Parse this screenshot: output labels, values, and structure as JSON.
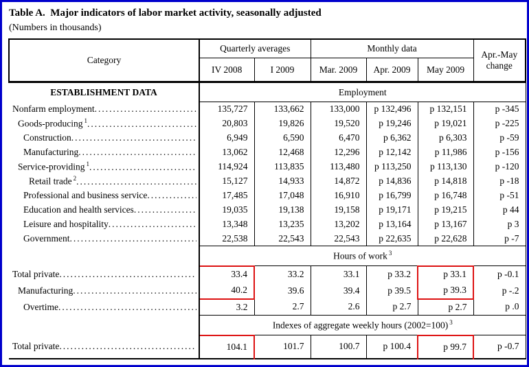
{
  "title": "Table A.  Major indicators of labor market activity, seasonally adjusted",
  "subtitle": "(Numbers in thousands)",
  "colors": {
    "frame_blue": "#0000cc",
    "highlight_red": "#dd1111",
    "line_black": "#000000"
  },
  "header": {
    "category": "Category",
    "quarterly_group": "Quarterly averages",
    "monthly_group": "Monthly data",
    "change": "Apr.-May change",
    "columns": [
      "IV 2008",
      "I 2009",
      "Mar. 2009",
      "Apr. 2009",
      "May 2009"
    ]
  },
  "sections": [
    {
      "left_header": "ESTABLISHMENT DATA",
      "span_header": "Employment",
      "sup": "",
      "rows": [
        {
          "label": "Nonfarm employment",
          "indent": 0,
          "sup": "",
          "values": [
            "135,727",
            "133,662",
            "133,000",
            "p 132,496",
            "p 132,151",
            "p -345"
          ]
        },
        {
          "label": "Goods-producing",
          "indent": 1,
          "sup": "1",
          "values": [
            "20,803",
            "19,826",
            "19,520",
            "p 19,246",
            "p 19,021",
            "p -225"
          ]
        },
        {
          "label": "Construction",
          "indent": 2,
          "sup": "",
          "values": [
            "6,949",
            "6,590",
            "6,470",
            "p 6,362",
            "p 6,303",
            "p -59"
          ]
        },
        {
          "label": "Manufacturing",
          "indent": 2,
          "sup": "",
          "values": [
            "13,062",
            "12,468",
            "12,296",
            "p 12,142",
            "p 11,986",
            "p -156"
          ]
        },
        {
          "label": "Service-providing",
          "indent": 1,
          "sup": "1",
          "values": [
            "114,924",
            "113,835",
            "113,480",
            "p 113,250",
            "p 113,130",
            "p -120"
          ]
        },
        {
          "label": "Retail trade",
          "indent": 3,
          "sup": "2",
          "values": [
            "15,127",
            "14,933",
            "14,872",
            "p 14,836",
            "p 14,818",
            "p -18"
          ]
        },
        {
          "label": "Professional and business service",
          "indent": 2,
          "sup": "",
          "values": [
            "17,485",
            "17,048",
            "16,910",
            "p 16,799",
            "p 16,748",
            "p -51"
          ]
        },
        {
          "label": "Education and health services",
          "indent": 2,
          "sup": "",
          "values": [
            "19,035",
            "19,138",
            "19,158",
            "p 19,171",
            "p 19,215",
            "p 44"
          ]
        },
        {
          "label": "Leisure and hospitality",
          "indent": 2,
          "sup": "",
          "values": [
            "13,348",
            "13,235",
            "13,202",
            "p 13,164",
            "p 13,167",
            "p 3"
          ]
        },
        {
          "label": "Government",
          "indent": 2,
          "sup": "",
          "values": [
            "22,538",
            "22,543",
            "22,543",
            "p 22,635",
            "p 22,628",
            "p -7"
          ]
        }
      ]
    },
    {
      "left_header": "",
      "span_header": "Hours of work",
      "sup": "3",
      "rows": [
        {
          "label": "Total private",
          "indent": 0,
          "sup": "",
          "values": [
            "33.4",
            "33.2",
            "33.1",
            "p 33.2",
            "p 33.1",
            "p -0.1"
          ],
          "hl": {
            "0": "top",
            "4": "top"
          }
        },
        {
          "label": "Manufacturing",
          "indent": 1,
          "sup": "",
          "values": [
            "40.2",
            "39.6",
            "39.4",
            "p 39.5",
            "p 39.3",
            "p -.2"
          ],
          "hl": {
            "0": "bottom",
            "4": "bottom"
          }
        },
        {
          "label": "Overtime",
          "indent": 2,
          "sup": "",
          "values": [
            "3.2",
            "2.7",
            "2.6",
            "p 2.7",
            "p 2.7",
            "p .0"
          ]
        }
      ]
    },
    {
      "left_header": "",
      "span_header": "Indexes of aggregate weekly hours (2002=100)",
      "sup": "3",
      "rows": [
        {
          "label": "Total private",
          "indent": 0,
          "sup": "",
          "values": [
            "104.1",
            "101.7",
            "100.7",
            "p 100.4",
            "p 99.7",
            "p -0.7"
          ],
          "hl": {
            "0": "solo",
            "4": "solo"
          }
        }
      ]
    }
  ]
}
